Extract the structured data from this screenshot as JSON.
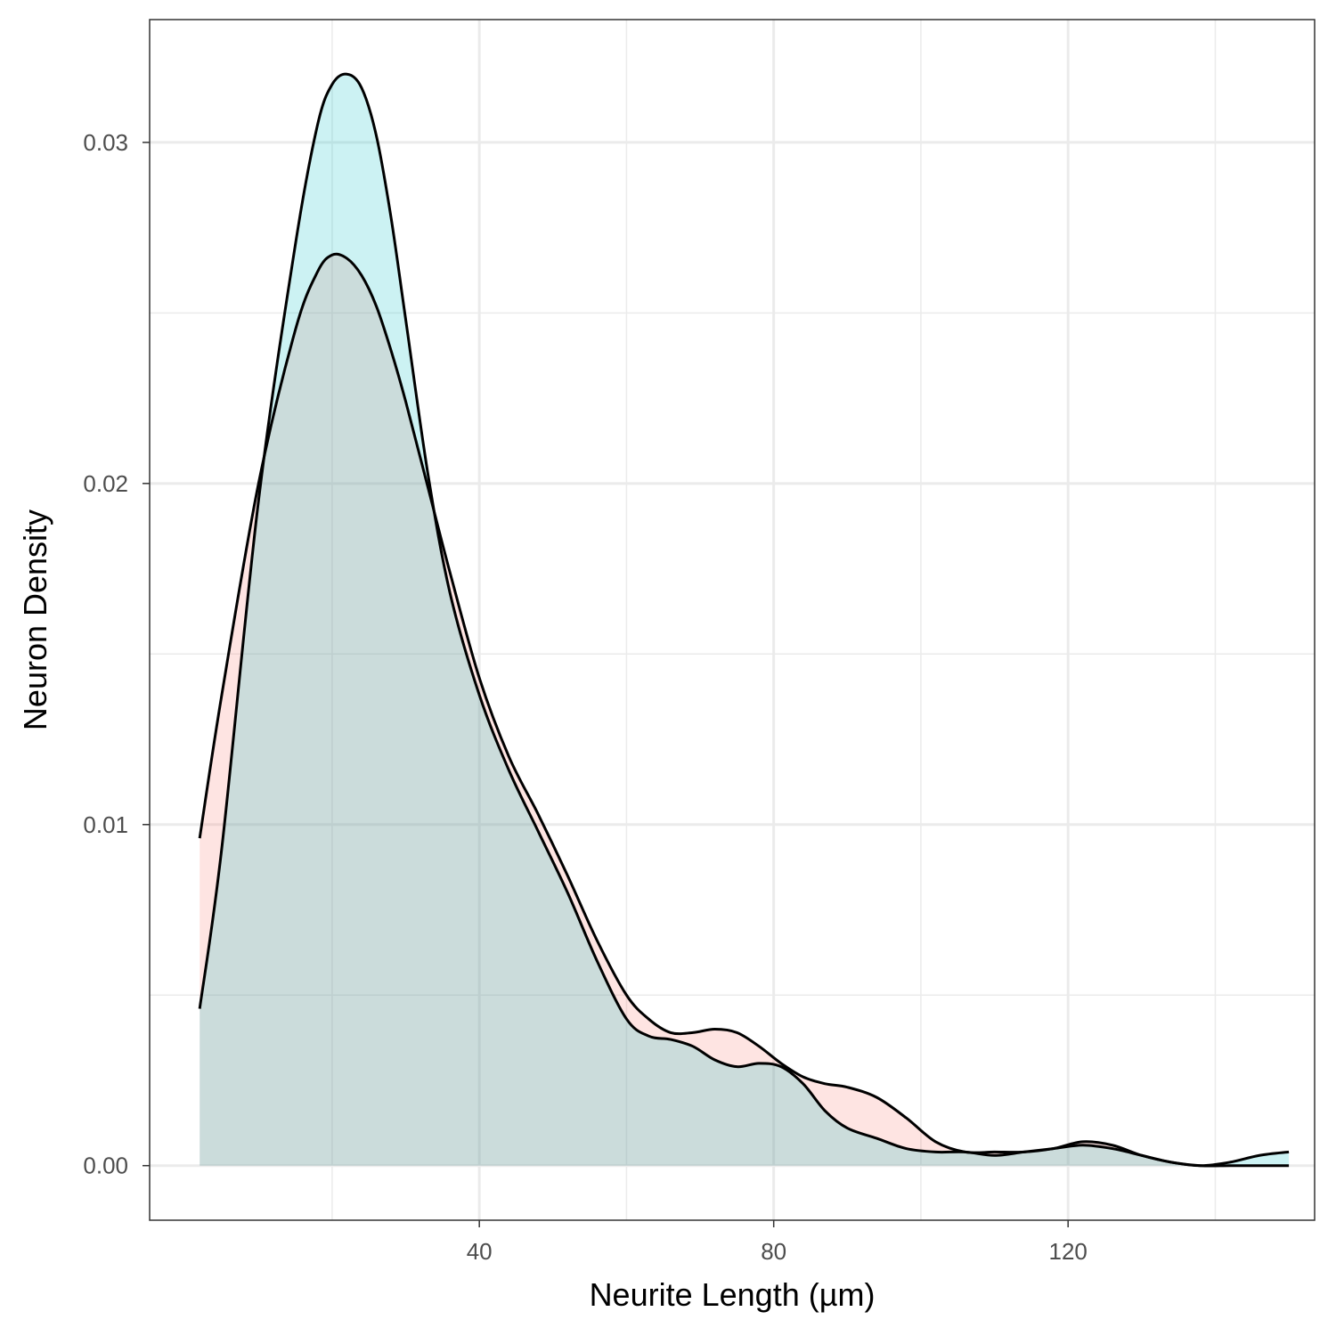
{
  "chart_data": {
    "type": "area",
    "xlabel": "Neurite Length (µm)",
    "ylabel": "Neuron Density",
    "xlim": [
      -4.8,
      153.5
    ],
    "ylim": [
      -0.0016,
      0.0336
    ],
    "x_ticks": [
      {
        "value": 40,
        "label": "40"
      },
      {
        "value": 80,
        "label": "80"
      },
      {
        "value": 120,
        "label": "120"
      }
    ],
    "x_minor_ticks": [
      20,
      60,
      100,
      140
    ],
    "y_ticks": [
      {
        "value": 0.0,
        "label": "0.00"
      },
      {
        "value": 0.01,
        "label": "0.01"
      },
      {
        "value": 0.02,
        "label": "0.02"
      },
      {
        "value": 0.03,
        "label": "0.03"
      }
    ],
    "y_minor_ticks": [
      0.005,
      0.015,
      0.025
    ],
    "grid": true,
    "legend": "none",
    "series": [
      {
        "fill": "#f8766d",
        "fill_opacity": 0.2,
        "x": [
          2,
          5,
          10,
          15,
          18,
          20,
          22,
          24,
          26,
          28,
          30,
          33,
          36,
          40,
          44,
          48,
          52,
          56,
          60,
          63,
          66,
          69,
          72,
          75,
          78,
          81,
          84,
          87,
          90,
          94,
          98,
          102,
          106,
          110,
          114,
          118,
          122,
          126,
          130,
          134,
          138,
          142,
          146,
          150
        ],
        "y": [
          0.0096,
          0.0138,
          0.02,
          0.0245,
          0.0262,
          0.0267,
          0.0266,
          0.0261,
          0.0252,
          0.0239,
          0.0224,
          0.0199,
          0.0174,
          0.0143,
          0.012,
          0.0103,
          0.0085,
          0.0066,
          0.005,
          0.0043,
          0.0039,
          0.0039,
          0.004,
          0.0039,
          0.0035,
          0.003,
          0.0026,
          0.0024,
          0.0023,
          0.002,
          0.0014,
          0.0007,
          0.0004,
          0.0004,
          0.0004,
          0.0005,
          0.0007,
          0.0006,
          0.0003,
          0.0001,
          0.0,
          0.0,
          0.0,
          0.0
        ]
      },
      {
        "fill": "#00bfc4",
        "fill_opacity": 0.2,
        "x": [
          2,
          5,
          10,
          15,
          18,
          20,
          22,
          24,
          26,
          28,
          30,
          33,
          36,
          40,
          44,
          48,
          52,
          56,
          60,
          63,
          66,
          69,
          72,
          75,
          78,
          81,
          84,
          87,
          90,
          94,
          98,
          102,
          106,
          110,
          114,
          118,
          122,
          126,
          130,
          134,
          138,
          142,
          146,
          150
        ],
        "y": [
          0.0046,
          0.0093,
          0.0195,
          0.027,
          0.0305,
          0.0317,
          0.032,
          0.0316,
          0.0302,
          0.0278,
          0.0248,
          0.0203,
          0.0168,
          0.0138,
          0.0116,
          0.0098,
          0.008,
          0.006,
          0.0043,
          0.0038,
          0.0037,
          0.0035,
          0.0031,
          0.0029,
          0.003,
          0.0029,
          0.0024,
          0.0016,
          0.0011,
          0.0008,
          0.0005,
          0.0004,
          0.0004,
          0.0003,
          0.0004,
          0.0005,
          0.0006,
          0.0005,
          0.0003,
          0.0001,
          0.0,
          0.0001,
          0.0003,
          0.0004
        ]
      }
    ]
  }
}
